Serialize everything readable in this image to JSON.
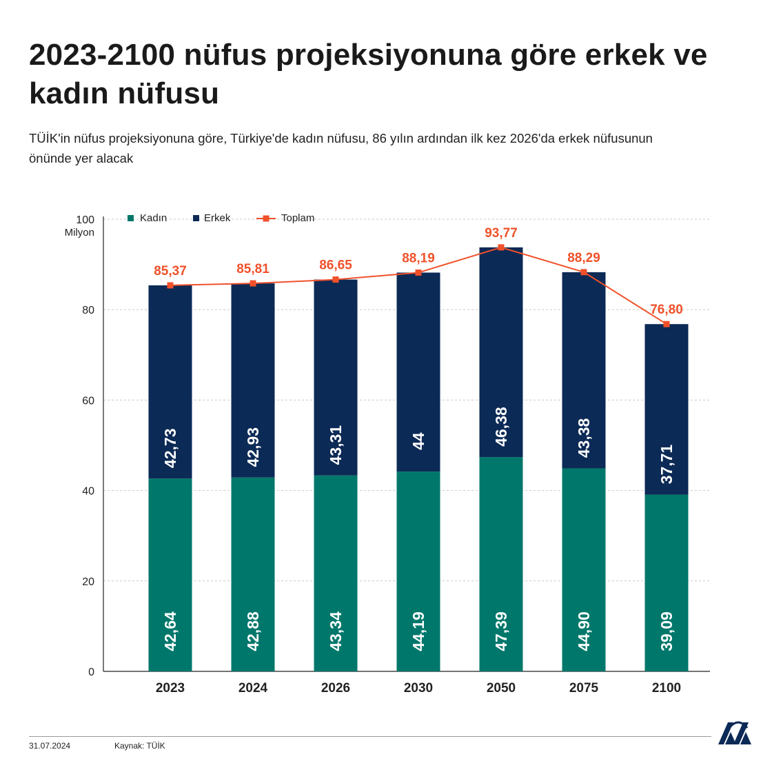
{
  "header": {
    "title": "2023-2100 nüfus projeksiyonuna göre erkek ve kadın nüfusu",
    "subtitle": "TÜİK'in nüfus projeksiyonuna göre, Türkiye'de kadın nüfusu, 86 yılın ardından ilk kez 2026'da erkek nüfusunun önünde yer alacak"
  },
  "footer": {
    "date": "31.07.2024",
    "source": "Kaynak: TÜİK",
    "logo_name": "aa-logo"
  },
  "colors": {
    "kadin": "#00776b",
    "erkek": "#0c2a56",
    "toplam": "#f0512a",
    "grid": "#c9c9c9",
    "axis": "#222222"
  },
  "chart_data": {
    "type": "bar",
    "stacked": true,
    "categories": [
      "2023",
      "2024",
      "2026",
      "2030",
      "2050",
      "2075",
      "2100"
    ],
    "series": [
      {
        "name": "Kadın",
        "values": [
          42.64,
          42.88,
          43.34,
          44.19,
          47.39,
          44.9,
          39.09
        ],
        "labels": [
          "42,64",
          "42,88",
          "43,34",
          "44,19",
          "47,39",
          "44,90",
          "39,09"
        ]
      },
      {
        "name": "Erkek",
        "values": [
          42.73,
          42.93,
          43.31,
          44,
          46.38,
          43.38,
          37.71
        ],
        "labels": [
          "42,73",
          "42,93",
          "43,31",
          "44",
          "46,38",
          "43,38",
          "37,71"
        ]
      }
    ],
    "line": {
      "name": "Toplam",
      "type": "line",
      "values": [
        85.37,
        85.81,
        86.65,
        88.19,
        93.77,
        88.29,
        76.8
      ],
      "labels": [
        "85,37",
        "85,81",
        "86,65",
        "88,19",
        "93,77",
        "88,29",
        "76,80"
      ]
    },
    "y_ticks": [
      "0",
      "20",
      "40",
      "60",
      "80",
      "100"
    ],
    "y_tick_values": [
      0,
      20,
      40,
      60,
      80,
      100
    ],
    "ylabel": "Milyon",
    "ylim": [
      0,
      100
    ],
    "grid": true,
    "legend": {
      "position": "top-left",
      "items": [
        "Kadın",
        "Erkek",
        "Toplam"
      ]
    }
  }
}
